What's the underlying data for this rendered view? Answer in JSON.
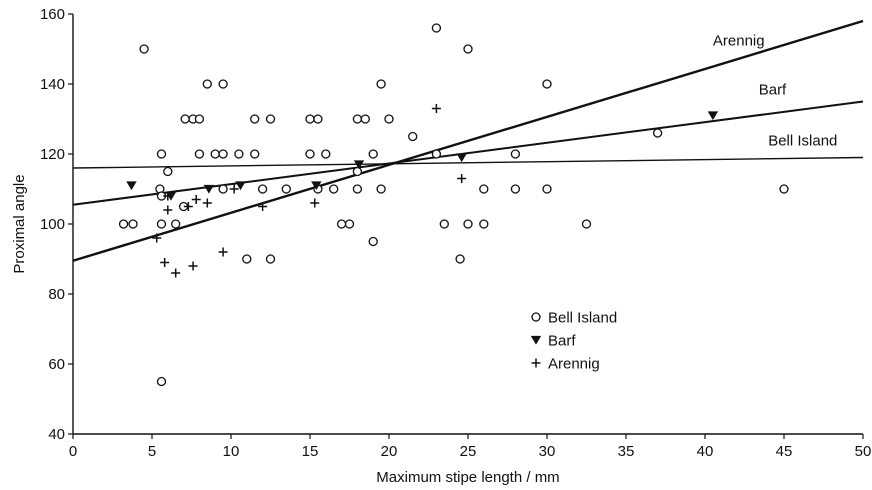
{
  "chart_data": {
    "type": "scatter",
    "xlabel": "Maximum stipe length / mm",
    "ylabel": "Proximal angle",
    "xlim": [
      0,
      50
    ],
    "ylim": [
      40,
      160
    ],
    "x_ticks": [
      0,
      5,
      10,
      15,
      20,
      25,
      30,
      35,
      40,
      45,
      50
    ],
    "y_ticks": [
      40,
      60,
      80,
      100,
      120,
      140,
      160
    ],
    "grid": false,
    "legend_position": "lower-center",
    "series": [
      {
        "name": "Bell Island",
        "marker": "open-circle",
        "points": [
          [
            4.5,
            150
          ],
          [
            3.2,
            100
          ],
          [
            3.8,
            100
          ],
          [
            5.6,
            120
          ],
          [
            5.5,
            110
          ],
          [
            6,
            115
          ],
          [
            5.6,
            108
          ],
          [
            5.6,
            100
          ],
          [
            5.6,
            55
          ],
          [
            6.5,
            100
          ],
          [
            7,
            105
          ],
          [
            7.1,
            130
          ],
          [
            7.6,
            130
          ],
          [
            8,
            130
          ],
          [
            8,
            120
          ],
          [
            8.5,
            140
          ],
          [
            9,
            120
          ],
          [
            9.5,
            140
          ],
          [
            9.5,
            120
          ],
          [
            9.5,
            110
          ],
          [
            10.5,
            120
          ],
          [
            11.5,
            130
          ],
          [
            11.5,
            120
          ],
          [
            12,
            110
          ],
          [
            11,
            90
          ],
          [
            12.5,
            90
          ],
          [
            12.5,
            130
          ],
          [
            13.5,
            110
          ],
          [
            15,
            130
          ],
          [
            15.5,
            130
          ],
          [
            15,
            120
          ],
          [
            16,
            120
          ],
          [
            15.5,
            110
          ],
          [
            16.5,
            110
          ],
          [
            17,
            100
          ],
          [
            17.5,
            100
          ],
          [
            18,
            130
          ],
          [
            18.5,
            130
          ],
          [
            18,
            115
          ],
          [
            18,
            110
          ],
          [
            19,
            120
          ],
          [
            19,
            95
          ],
          [
            19.5,
            140
          ],
          [
            19.5,
            110
          ],
          [
            20,
            130
          ],
          [
            21.5,
            125
          ],
          [
            23,
            156
          ],
          [
            23,
            120
          ],
          [
            23.5,
            100
          ],
          [
            24.5,
            90
          ],
          [
            25,
            150
          ],
          [
            25,
            100
          ],
          [
            26,
            110
          ],
          [
            26,
            100
          ],
          [
            28,
            120
          ],
          [
            28,
            110
          ],
          [
            30,
            140
          ],
          [
            30,
            110
          ],
          [
            32.5,
            100
          ],
          [
            37,
            126
          ],
          [
            45,
            110
          ]
        ]
      },
      {
        "name": "Barf",
        "marker": "filled-triangle-down",
        "points": [
          [
            3.7,
            111
          ],
          [
            6.2,
            108
          ],
          [
            8.6,
            110
          ],
          [
            10.6,
            111
          ],
          [
            15.4,
            111
          ],
          [
            18.1,
            117
          ],
          [
            24.6,
            119
          ],
          [
            40.5,
            131
          ]
        ]
      },
      {
        "name": "Arennig",
        "marker": "plus",
        "points": [
          [
            5.3,
            96
          ],
          [
            5.8,
            89
          ],
          [
            6,
            104
          ],
          [
            6,
            108
          ],
          [
            6.5,
            86
          ],
          [
            7.3,
            105
          ],
          [
            7.6,
            88
          ],
          [
            7.8,
            107
          ],
          [
            8.5,
            106
          ],
          [
            9.5,
            92
          ],
          [
            10.2,
            110
          ],
          [
            12,
            105
          ],
          [
            15.3,
            106
          ],
          [
            23,
            133
          ],
          [
            24.6,
            113
          ]
        ]
      }
    ],
    "regression_lines": [
      {
        "name": "Arennig",
        "x": [
          0,
          50
        ],
        "y": [
          89.5,
          158
        ]
      },
      {
        "name": "Barf",
        "x": [
          0,
          50
        ],
        "y": [
          105.5,
          135
        ]
      },
      {
        "name": "Bell Island",
        "x": [
          0,
          50
        ],
        "y": [
          116,
          119
        ]
      }
    ],
    "legend": [
      "Bell Island",
      "Barf",
      "Arennig"
    ]
  }
}
